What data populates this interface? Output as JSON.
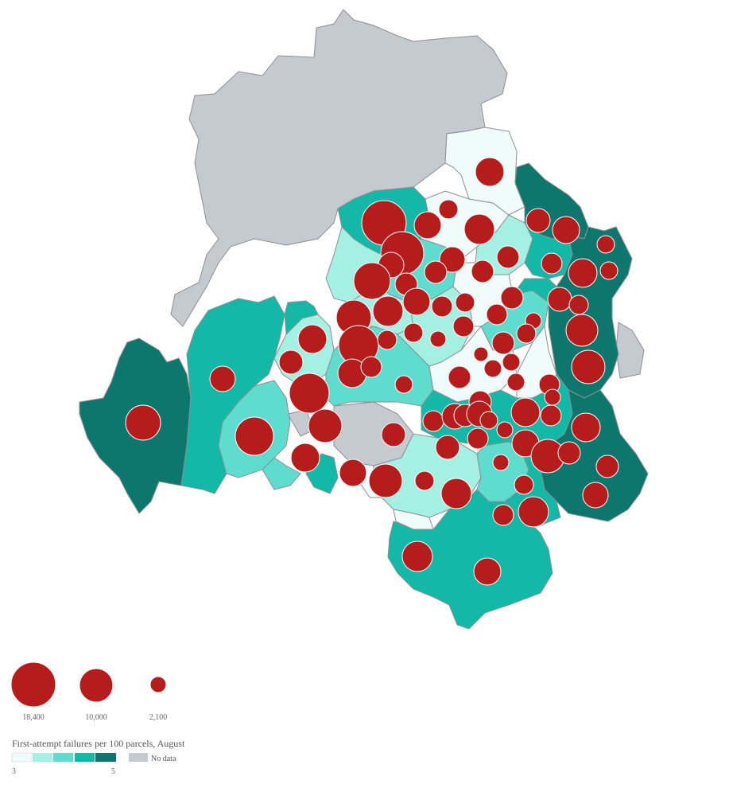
{
  "legend": {
    "color_title": "First-attempt failures per 100 parcels, August",
    "color_min_label": "3",
    "color_max_label": "5",
    "no_data_label": "No data",
    "color_steps": [
      "#effcf9",
      "#a4f1e3",
      "#5edccd",
      "#13b8a6",
      "#0e776d"
    ],
    "no_data_color": "#c5c9d0",
    "size_title": "",
    "sizes": [
      {
        "value": 18400,
        "label": "18,400"
      },
      {
        "value": 10000,
        "label": "10,000"
      },
      {
        "value": 2100,
        "label": "2,100"
      }
    ]
  },
  "style": {
    "bubble_color": "#b71c1c",
    "border_color": "#8e8e93"
  }
}
